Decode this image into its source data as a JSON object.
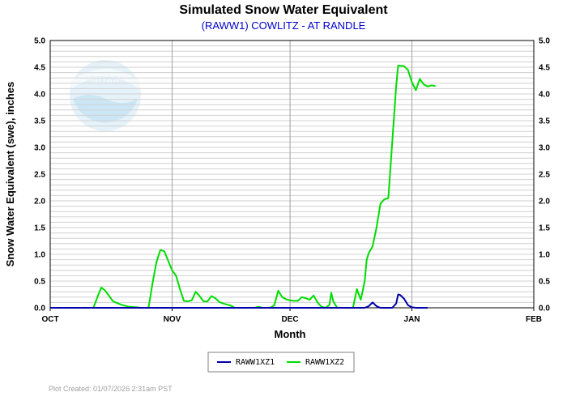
{
  "chart_data": {
    "type": "line",
    "title": "Simulated Snow Water Equivalent",
    "subtitle": "(RAWW1) COWLITZ - AT RANDLE",
    "xlabel": "Month",
    "ylabel": "Snow Water Equivalent (swe),  inches",
    "ylim": [
      0,
      5
    ],
    "yticks": [
      "0.0",
      "0.5",
      "1.0",
      "1.5",
      "2.0",
      "2.5",
      "3.0",
      "3.5",
      "4.0",
      "4.5",
      "5.0"
    ],
    "xlim": [
      "2025-10-01",
      "2026-02-01"
    ],
    "xticks": [
      {
        "label": "OCT",
        "date": "2025-10-01"
      },
      {
        "label": "NOV",
        "date": "2025-11-01"
      },
      {
        "label": "DEC",
        "date": "2025-12-01"
      },
      {
        "label": "JAN",
        "date": "2026-01-01"
      },
      {
        "label": "FEB",
        "date": "2026-02-01"
      }
    ],
    "grid": true,
    "legend_position": "bottom-center",
    "series": [
      {
        "name": "RAWW1XZ1",
        "color": "#0000aa",
        "points": [
          [
            "2025-10-01",
            0
          ],
          [
            "2025-12-20",
            0
          ],
          [
            "2025-12-21",
            0.03
          ],
          [
            "2025-12-22",
            0.1
          ],
          [
            "2025-12-23",
            0.03
          ],
          [
            "2025-12-24",
            0
          ],
          [
            "2025-12-27",
            0
          ],
          [
            "2025-12-28",
            0.08
          ],
          [
            "2025-12-28T12:00",
            0.25
          ],
          [
            "2025-12-29",
            0.24
          ],
          [
            "2025-12-30",
            0.17
          ],
          [
            "2025-12-31",
            0.05
          ],
          [
            "2026-01-01",
            0.01
          ],
          [
            "2026-01-02",
            0
          ],
          [
            "2026-01-05",
            0
          ]
        ]
      },
      {
        "name": "RAWW1XZ2",
        "color": "#00dd00",
        "points": [
          [
            "2025-10-01",
            0
          ],
          [
            "2025-10-12",
            0
          ],
          [
            "2025-10-13",
            0.2
          ],
          [
            "2025-10-14",
            0.38
          ],
          [
            "2025-10-15",
            0.32
          ],
          [
            "2025-10-16",
            0.22
          ],
          [
            "2025-10-17",
            0.12
          ],
          [
            "2025-10-19",
            0.06
          ],
          [
            "2025-10-21",
            0.02
          ],
          [
            "2025-10-23",
            0.01
          ],
          [
            "2025-10-24",
            0
          ],
          [
            "2025-10-26",
            0
          ],
          [
            "2025-10-27",
            0.45
          ],
          [
            "2025-10-28",
            0.85
          ],
          [
            "2025-10-29",
            1.08
          ],
          [
            "2025-10-30",
            1.06
          ],
          [
            "2025-10-31",
            0.88
          ],
          [
            "2025-11-01",
            0.7
          ],
          [
            "2025-11-02",
            0.6
          ],
          [
            "2025-11-03",
            0.35
          ],
          [
            "2025-11-04",
            0.13
          ],
          [
            "2025-11-05",
            0.12
          ],
          [
            "2025-11-06",
            0.14
          ],
          [
            "2025-11-07",
            0.3
          ],
          [
            "2025-11-08",
            0.22
          ],
          [
            "2025-11-09",
            0.12
          ],
          [
            "2025-11-10",
            0.12
          ],
          [
            "2025-11-11",
            0.22
          ],
          [
            "2025-11-12",
            0.18
          ],
          [
            "2025-11-13",
            0.11
          ],
          [
            "2025-11-14",
            0.08
          ],
          [
            "2025-11-15",
            0.06
          ],
          [
            "2025-11-16",
            0.04
          ],
          [
            "2025-11-17",
            0
          ],
          [
            "2025-11-22",
            0
          ],
          [
            "2025-11-23",
            0.02
          ],
          [
            "2025-11-24",
            0
          ],
          [
            "2025-11-26",
            0
          ],
          [
            "2025-11-27",
            0.05
          ],
          [
            "2025-11-28",
            0.32
          ],
          [
            "2025-11-29",
            0.2
          ],
          [
            "2025-11-30",
            0.16
          ],
          [
            "2025-12-01",
            0.14
          ],
          [
            "2025-12-02",
            0.13
          ],
          [
            "2025-12-03",
            0.13
          ],
          [
            "2025-12-04",
            0.2
          ],
          [
            "2025-12-05",
            0.18
          ],
          [
            "2025-12-06",
            0.15
          ],
          [
            "2025-12-07",
            0.23
          ],
          [
            "2025-12-08",
            0.1
          ],
          [
            "2025-12-09",
            0.02
          ],
          [
            "2025-12-10",
            0
          ],
          [
            "2025-12-11",
            0.05
          ],
          [
            "2025-12-11T12:00",
            0.28
          ],
          [
            "2025-12-12",
            0.12
          ],
          [
            "2025-12-13",
            0
          ],
          [
            "2025-12-17",
            0
          ],
          [
            "2025-12-18",
            0.35
          ],
          [
            "2025-12-19",
            0.15
          ],
          [
            "2025-12-20",
            0.5
          ],
          [
            "2025-12-20T12:00",
            0.9
          ],
          [
            "2025-12-21",
            1.02
          ],
          [
            "2025-12-22",
            1.15
          ],
          [
            "2025-12-23",
            1.5
          ],
          [
            "2025-12-24",
            1.95
          ],
          [
            "2025-12-25",
            2.03
          ],
          [
            "2025-12-26",
            2.05
          ],
          [
            "2025-12-27",
            3.1
          ],
          [
            "2025-12-28",
            4.15
          ],
          [
            "2025-12-28T12:00",
            4.53
          ],
          [
            "2025-12-30",
            4.52
          ],
          [
            "2025-12-31",
            4.45
          ],
          [
            "2026-01-01",
            4.22
          ],
          [
            "2026-01-02",
            4.07
          ],
          [
            "2026-01-03",
            4.28
          ],
          [
            "2026-01-04",
            4.18
          ],
          [
            "2026-01-05",
            4.14
          ],
          [
            "2026-01-06",
            4.16
          ],
          [
            "2026-01-07",
            4.15
          ]
        ]
      }
    ]
  },
  "footer": "Plot Created: 01/07/2026 2:31am PST",
  "watermark": "NOAA",
  "watermark_icon": "noaa-logo-icon"
}
